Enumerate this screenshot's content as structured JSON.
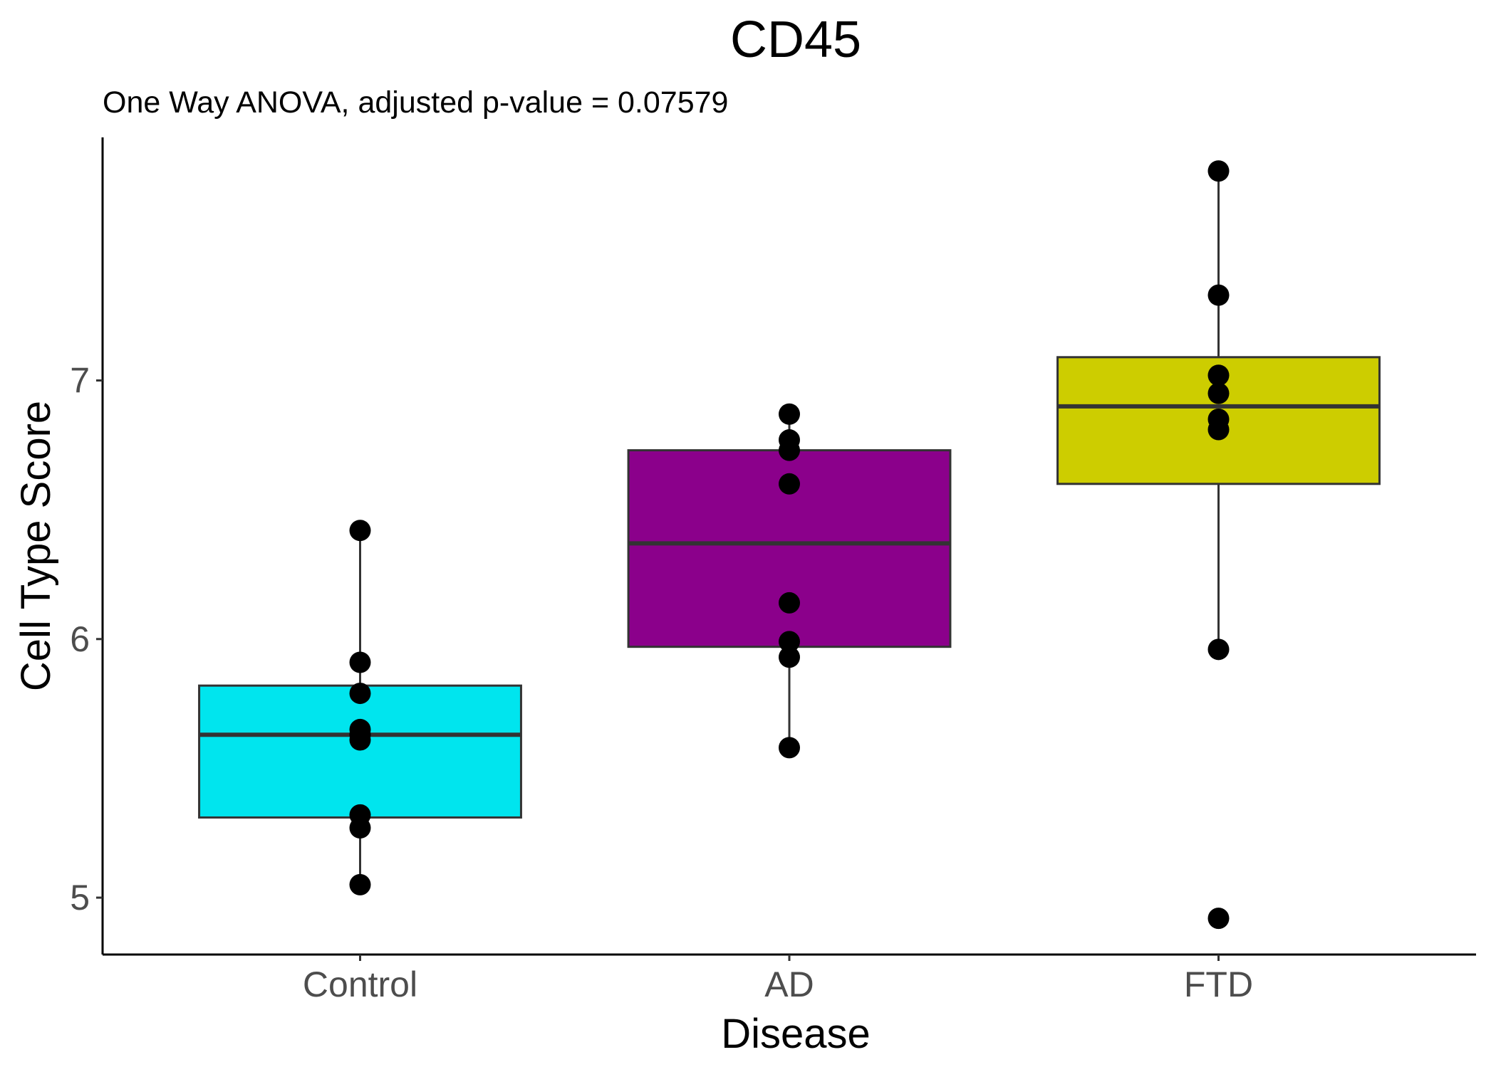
{
  "chart_data": {
    "type": "box",
    "title": "CD45",
    "subtitle": "One Way ANOVA, adjusted p-value = 0.07579",
    "xlabel": "Disease",
    "ylabel": "Cell Type Score",
    "categories": [
      "Control",
      "AD",
      "FTD"
    ],
    "y_ticks": [
      {
        "value": 5,
        "label": "5"
      },
      {
        "value": 6,
        "label": "6"
      },
      {
        "value": 7,
        "label": "7"
      }
    ],
    "ylim": [
      4.78,
      7.94
    ],
    "grid": false,
    "legend": "none",
    "groups": [
      {
        "category": "Control",
        "color": "#00E5EE",
        "q1": 5.31,
        "median": 5.63,
        "q3": 5.82,
        "whisker_low": 5.05,
        "whisker_high": 6.42,
        "points": [
          6.42,
          5.91,
          5.79,
          5.65,
          5.63,
          5.61,
          5.32,
          5.27,
          5.05
        ]
      },
      {
        "category": "AD",
        "color": "#8B008B",
        "q1": 5.97,
        "median": 6.37,
        "q3": 6.73,
        "whisker_low": 5.58,
        "whisker_high": 6.87,
        "points": [
          6.87,
          6.77,
          6.73,
          6.6,
          6.14,
          5.99,
          5.93,
          5.58
        ]
      },
      {
        "category": "FTD",
        "color": "#CDCD00",
        "q1": 6.6,
        "median": 6.9,
        "q3": 7.09,
        "whisker_low": 5.96,
        "whisker_high": 7.81,
        "points": [
          7.81,
          7.33,
          7.02,
          6.95,
          6.85,
          6.81,
          5.96,
          4.92
        ]
      }
    ]
  }
}
